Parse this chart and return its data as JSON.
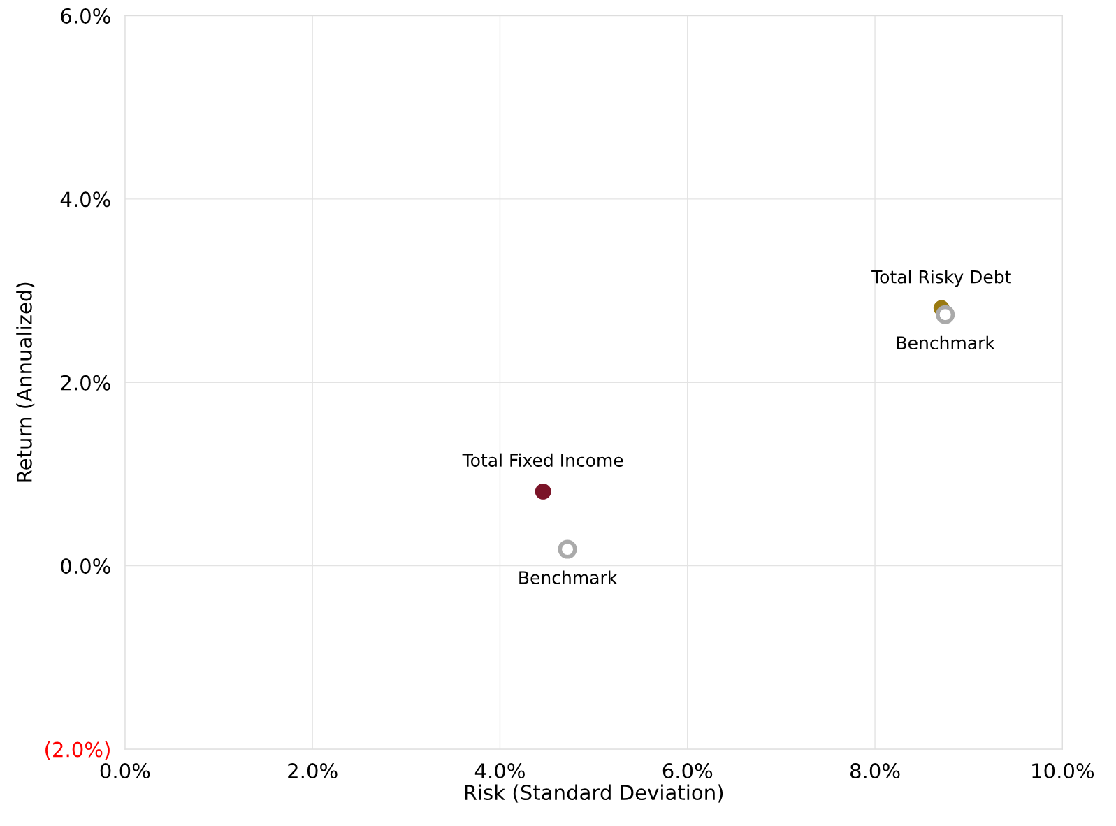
{
  "chart_data": {
    "type": "scatter",
    "xlabel": "Risk (Standard Deviation)",
    "ylabel": "Return (Annualized)",
    "xlim": [
      0,
      10
    ],
    "xticks": [
      {
        "value": 0,
        "label": "0.0%"
      },
      {
        "value": 2,
        "label": "2.0%"
      },
      {
        "value": 4,
        "label": "4.0%"
      },
      {
        "value": 6,
        "label": "6.0%"
      },
      {
        "value": 8,
        "label": "8.0%"
      },
      {
        "value": 10,
        "label": "10.0%"
      }
    ],
    "ylim": [
      -2,
      6
    ],
    "yticks": [
      {
        "value": -2,
        "label": "(2.0%)"
      },
      {
        "value": 0,
        "label": "0.0%"
      },
      {
        "value": 2,
        "label": "2.0%"
      },
      {
        "value": 4,
        "label": "4.0%"
      },
      {
        "value": 6,
        "label": "6.0%"
      }
    ],
    "grid": true,
    "marker": "circle",
    "series": [
      {
        "name": "Total Fixed Income",
        "color": "#7b1428",
        "x": [
          4.46
        ],
        "values": [
          0.81
        ]
      },
      {
        "name": "Total Risky Debt",
        "color": "#9a7a10",
        "x": [
          8.71
        ],
        "values": [
          2.81
        ]
      },
      {
        "name": "Benchmark",
        "color": "#aaaaaa",
        "x": [
          4.72,
          8.75
        ],
        "values": [
          0.18,
          2.74
        ]
      }
    ]
  }
}
